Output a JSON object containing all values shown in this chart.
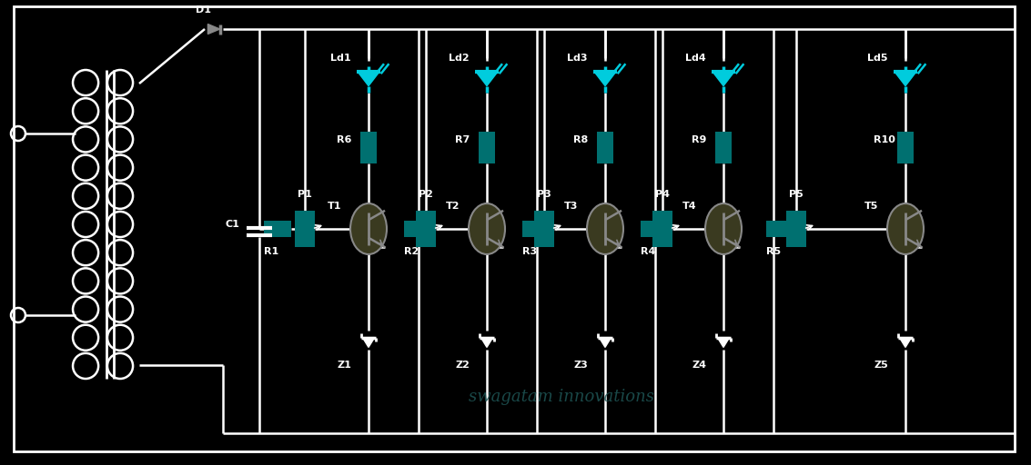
{
  "bg_color": "#000000",
  "wire_color": "#ffffff",
  "component_color": "#007070",
  "led_color": "#00ccdd",
  "transistor_fill": "#3a3a20",
  "transistor_outline": "#888888",
  "text_color": "#ffffff",
  "watermark_color": "#1e5555",
  "title": "swagatam innovations",
  "led_labels": [
    "Ld1",
    "Ld2",
    "Ld3",
    "Ld4",
    "Ld5"
  ],
  "r_top_labels": [
    "R6",
    "R7",
    "R8",
    "R9",
    "R10"
  ],
  "transistor_labels": [
    "T1",
    "T2",
    "T3",
    "T4",
    "T5"
  ],
  "p_labels": [
    "P1",
    "P2",
    "P3",
    "P4",
    "P5"
  ],
  "r_bot_labels": [
    "R1",
    "R2",
    "R3",
    "R4",
    "R5"
  ],
  "zener_labels": [
    "Z1",
    "Z2",
    "Z3",
    "Z4",
    "Z5"
  ],
  "d1_label": "D1",
  "c1_label": "C1",
  "figw": 11.33,
  "figh": 5.12,
  "dpi": 100
}
